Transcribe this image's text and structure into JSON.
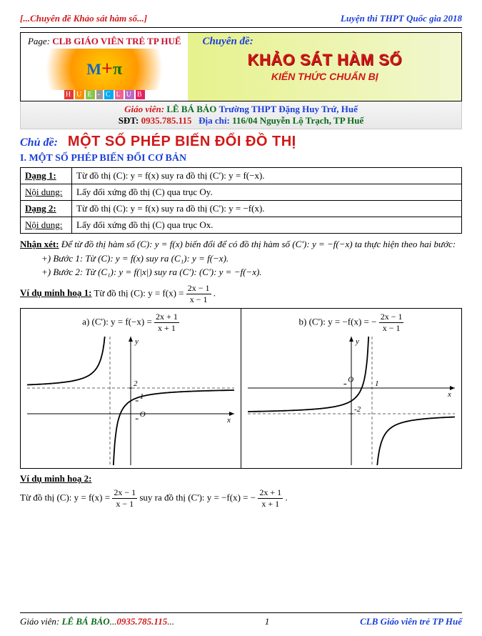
{
  "colors": {
    "red": "#d01818",
    "blue": "#1a3fd8",
    "green": "#0b6b1b",
    "banner_grad_from": "#e6f28c",
    "banner_grad_to": "#f2f7d0",
    "teacher_bg": "#eeeeee"
  },
  "header": {
    "left": "[...Chuyên đề Khảo sát hàm số...]",
    "right": "Luyện thi THPT Quốc gia 2018"
  },
  "banner": {
    "page_label": "Page:",
    "page_name": "CLB GIÁO VIÊN TRẺ TP HUẾ",
    "hue_colors": [
      "#e53935",
      "#fb8c00",
      "#8bc34a",
      "#999999",
      "#03a9f4",
      "#f06292",
      "#ba68c8",
      "#e91e63"
    ],
    "hue_letters": [
      "H",
      "U",
      "E",
      "-",
      "C",
      "L",
      "U",
      "B"
    ],
    "chuyen_de": "Chuyên đề:",
    "title": "KHẢO SÁT HÀM SỐ",
    "subtitle": "KIẾN THỨC CHUẨN BỊ"
  },
  "teacher": {
    "gv_label": "Giáo viên:",
    "gv_name": "LÊ BÁ BẢO",
    "school": "Trường THPT Đặng Huy Trứ, Huế",
    "sdt_label": "SĐT:",
    "sdt": "0935.785.115",
    "addr_label": "Địa chỉ:",
    "addr": "116/04 Nguyễn Lộ Trạch, TP Huế"
  },
  "topic": {
    "chu_de": "Chủ đề:",
    "main_title": "MỘT SỐ PHÉP BIẾN  ĐỔI  ĐỒ THỊ"
  },
  "section1": "I. MỘT SỐ PHÉP BIẾN ĐỔI CƠ BẢN",
  "rows": [
    {
      "lbl": "Dạng 1:",
      "txt": "Từ đồ thị (C): y = f(x) suy ra đồ thị (C'): y = f(−x)."
    },
    {
      "lbl": "Nội dung:",
      "txt": "Lấy đối xứng đồ thị (C) qua trục Oy."
    },
    {
      "lbl": "Dạng 2:",
      "txt": "Từ đồ thị (C): y = f(x) suy ra đồ thị (C'): y = −f(x)."
    },
    {
      "lbl": "Nội dung:",
      "txt": "Lấy đối xứng đồ thị (C) qua trục Ox."
    }
  ],
  "note": {
    "lead": "Nhận xét:",
    "text": "Để từ đồ thị hàm số (C): y = f(x) biến đổi để có đồ thị hàm số (C'): y = −f(−x) ta thực hiện theo hai bước:",
    "step1": "+) Bước 1: Từ (C): y = f(x) suy ra (C₁): y = f(−x).",
    "step2": "+) Bước 2: Từ (C₁): y = f(|x|) suy ra (C'): (C'): y = −f(−x)."
  },
  "vd1": {
    "label": "Ví dụ minh hoạ 1:",
    "tail": "Từ đồ thị (C): y = f(x) = ",
    "frac": {
      "num": "2x − 1",
      "den": "x − 1"
    },
    "dot": "."
  },
  "graph_a": {
    "head_prefix": "a)   (C'): y = f(−x) = ",
    "frac": {
      "num": "2x + 1",
      "den": "x + 1"
    },
    "chart": {
      "bg": "#ffffff",
      "axis_color": "#000000",
      "curve_color": "#000000",
      "asymptote_dash": "4,3",
      "asymptote_color": "#666666",
      "xlim": [
        -5,
        5
      ],
      "ylim": [
        -4,
        6
      ],
      "vert_asym_x": -1,
      "horiz_asym_y": 2,
      "tick_labels": [
        {
          "x": 0,
          "y": 2,
          "label": "2"
        },
        {
          "x": -1,
          "y": 0,
          "label": ""
        },
        {
          "x": 0.3,
          "y": -0.4,
          "label": "O"
        },
        {
          "x": 0.3,
          "y": 1,
          "label": "1"
        }
      ],
      "y_label": "y",
      "x_label": "x"
    }
  },
  "graph_b": {
    "head_prefix": "b)   (C'): y = −f(x) = −",
    "frac": {
      "num": "2x − 1",
      "den": "x − 1"
    },
    "chart": {
      "bg": "#ffffff",
      "axis_color": "#000000",
      "curve_color": "#000000",
      "asymptote_dash": "4,3",
      "asymptote_color": "#666666",
      "xlim": [
        -5,
        5
      ],
      "ylim": [
        -6,
        4
      ],
      "vert_asym_x": 1,
      "horiz_asym_y": -2,
      "tick_labels": [
        {
          "x": 1,
          "y": 0,
          "label": "1"
        },
        {
          "x": 0,
          "y": -2,
          "label": "-2"
        },
        {
          "x": -0.3,
          "y": 0.3,
          "label": "O"
        }
      ],
      "y_label": "y",
      "x_label": "x"
    }
  },
  "vd2": {
    "label": "Ví dụ minh hoạ  2:",
    "line_pre": "Từ đồ thị (C): y = f(x) = ",
    "frac1": {
      "num": "2x − 1",
      "den": "x − 1"
    },
    "mid": " suy ra đồ thị (C'): y = −f(x) = −",
    "frac2": {
      "num": "2x + 1",
      "den": "x + 1"
    },
    "dot": "."
  },
  "footer": {
    "left_1": "Giáo viên: ",
    "left_2": "LÊ BÁ BẢO",
    "left_3": "...",
    "left_4": "0935.785.115",
    "left_5": "...",
    "page": "1",
    "right": "CLB Giáo viên trẻ TP Huế"
  }
}
